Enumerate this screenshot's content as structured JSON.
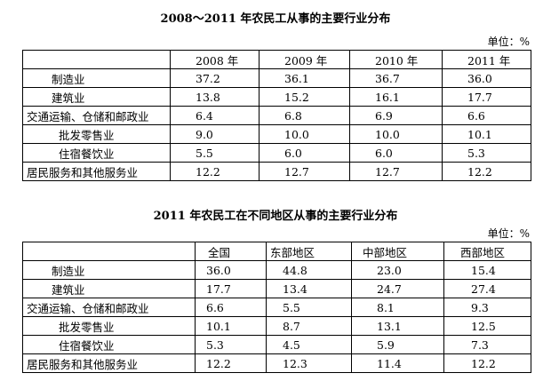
{
  "table1": {
    "title": "2008～2011 年农民工从事的主要行业分布",
    "unit": "单位：%",
    "headers": [
      "2008 年",
      "2009 年",
      "2010 年",
      "2011 年"
    ],
    "rows": [
      {
        "label": "制造业",
        "values": [
          "37.2",
          "36.1",
          "36.7",
          "36.0"
        ]
      },
      {
        "label": "建筑业",
        "values": [
          "13.8",
          "15.2",
          "16.1",
          "17.7"
        ]
      },
      {
        "label": "交通运输、仓储和邮政业",
        "values": [
          "6.4",
          "6.8",
          "6.9",
          "6.6"
        ]
      },
      {
        "label": "批发零售业",
        "values": [
          "9.0",
          "10.0",
          "10.0",
          "10.1"
        ]
      },
      {
        "label": "住宿餐饮业",
        "values": [
          "5.5",
          "6.0",
          "6.0",
          "5.3"
        ]
      },
      {
        "label": "居民服务和其他服务业",
        "values": [
          "12.2",
          "12.7",
          "12.7",
          "12.2"
        ]
      }
    ]
  },
  "table2": {
    "title": "2011 年农民工在不同地区从事的主要行业分布",
    "unit": "单位：%",
    "headers": [
      "全国",
      "东部地区",
      "中部地区",
      "西部地区"
    ],
    "rows": [
      {
        "label": "制造业",
        "values": [
          "36.0",
          "44.8",
          "23.0",
          "15.4"
        ]
      },
      {
        "label": "建筑业",
        "values": [
          "17.7",
          "13.4",
          "24.7",
          "27.4"
        ]
      },
      {
        "label": "交通运输、仓储和邮政业",
        "values": [
          "6.6",
          "5.5",
          "8.1",
          "9.3"
        ]
      },
      {
        "label": "批发零售业",
        "values": [
          "10.1",
          "8.7",
          "13.1",
          "12.5"
        ]
      },
      {
        "label": "住宿餐饮业",
        "values": [
          "5.3",
          "4.5",
          "5.9",
          "7.3"
        ]
      },
      {
        "label": "居民服务和其他服务业",
        "values": [
          "12.2",
          "12.3",
          "11.4",
          "12.2"
        ]
      }
    ]
  }
}
